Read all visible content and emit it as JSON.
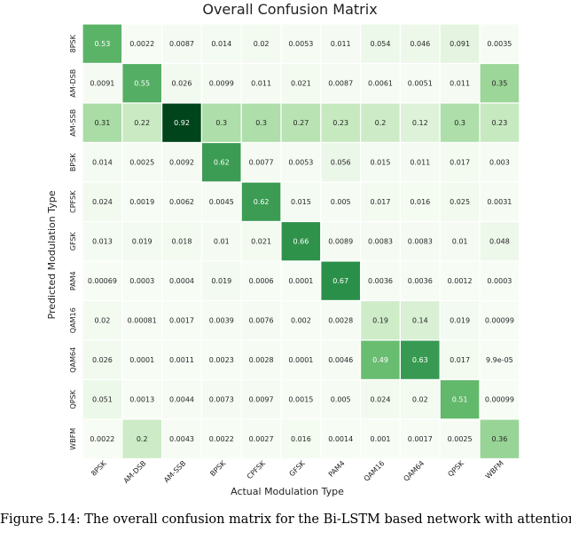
{
  "chart_data": {
    "type": "heatmap",
    "title": "Overall Confusion Matrix",
    "xlabel": "Actual Modulation Type",
    "ylabel": "Predicted Modulation Type",
    "x_categories": [
      "8PSK",
      "AM-DSB",
      "AM-SSB",
      "BPSK",
      "CPFSK",
      "GFSK",
      "PAM4",
      "QAM16",
      "QAM64",
      "QPSK",
      "WBFM"
    ],
    "y_categories": [
      "8PSK",
      "AM-DSB",
      "AM-SSB",
      "BPSK",
      "CPFSK",
      "GFSK",
      "PAM4",
      "QAM16",
      "QAM64",
      "QPSK",
      "WBFM"
    ],
    "values": [
      [
        "0.53",
        "0.0022",
        "0.0087",
        "0.014",
        "0.02",
        "0.0053",
        "0.011",
        "0.054",
        "0.046",
        "0.091",
        "0.0035"
      ],
      [
        "0.0091",
        "0.55",
        "0.026",
        "0.0099",
        "0.011",
        "0.021",
        "0.0087",
        "0.0061",
        "0.0051",
        "0.011",
        "0.35"
      ],
      [
        "0.31",
        "0.22",
        "0.92",
        "0.3",
        "0.3",
        "0.27",
        "0.23",
        "0.2",
        "0.12",
        "0.3",
        "0.23"
      ],
      [
        "0.014",
        "0.0025",
        "0.0092",
        "0.62",
        "0.0077",
        "0.0053",
        "0.056",
        "0.015",
        "0.011",
        "0.017",
        "0.003"
      ],
      [
        "0.024",
        "0.0019",
        "0.0062",
        "0.0045",
        "0.62",
        "0.015",
        "0.005",
        "0.017",
        "0.016",
        "0.025",
        "0.0031"
      ],
      [
        "0.013",
        "0.019",
        "0.018",
        "0.01",
        "0.021",
        "0.66",
        "0.0089",
        "0.0083",
        "0.0083",
        "0.01",
        "0.048"
      ],
      [
        "0.00069",
        "0.0003",
        "0.0004",
        "0.019",
        "0.0006",
        "0.0001",
        "0.67",
        "0.0036",
        "0.0036",
        "0.0012",
        "0.0003"
      ],
      [
        "0.02",
        "0.00081",
        "0.0017",
        "0.0039",
        "0.0076",
        "0.002",
        "0.0028",
        "0.19",
        "0.14",
        "0.019",
        "0.00099"
      ],
      [
        "0.026",
        "0.0001",
        "0.0011",
        "0.0023",
        "0.0028",
        "0.0001",
        "0.0046",
        "0.49",
        "0.63",
        "0.017",
        "9.9e-05"
      ],
      [
        "0.051",
        "0.0013",
        "0.0044",
        "0.0073",
        "0.0097",
        "0.0015",
        "0.005",
        "0.024",
        "0.02",
        "0.51",
        "0.00099"
      ],
      [
        "0.0022",
        "0.2",
        "0.0043",
        "0.0022",
        "0.0027",
        "0.016",
        "0.0014",
        "0.001",
        "0.0017",
        "0.0025",
        "0.36"
      ]
    ],
    "colormap": [
      "#f7fcf5",
      "#c7e9c0",
      "#74c476",
      "#238b45",
      "#00441b"
    ],
    "grid": true
  },
  "caption": "Figure 5.14: The overall confusion matrix for the Bi-LSTM based network with attention"
}
